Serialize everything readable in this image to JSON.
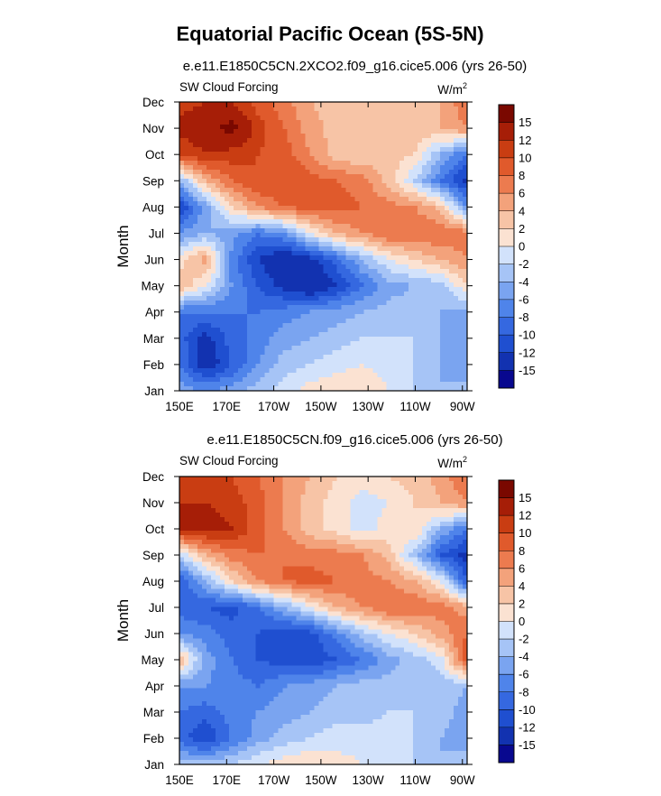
{
  "figure": {
    "title": "Equatorial Pacific Ocean (5S-5N)"
  },
  "chart_data": [
    {
      "type": "heatmap",
      "title": "e.e11.E1850C5CN.2XCO2.f09_g16.cice5.006 (yrs 26-50)",
      "left_label": "SW Cloud Forcing",
      "units_base": "W/m",
      "units_exp": "2",
      "ylabel": "Month",
      "xlabel": "",
      "x_ticks": [
        "150E",
        "170E",
        "170W",
        "150W",
        "130W",
        "110W",
        "90W"
      ],
      "x_values": [
        150,
        170,
        190,
        210,
        230,
        250,
        270
      ],
      "xlim": [
        150,
        272
      ],
      "y_ticks": [
        "Jan",
        "Feb",
        "Mar",
        "Apr",
        "May",
        "Jun",
        "Jul",
        "Aug",
        "Sep",
        "Oct",
        "Nov",
        "Dec"
      ],
      "ylim": [
        1,
        12
      ],
      "colorbar_labels": [
        "-15",
        "-12",
        "-10",
        "-8",
        "-6",
        "-4",
        "-2",
        "0",
        "2",
        "4",
        "6",
        "8",
        "10",
        "12",
        "15"
      ],
      "contour_levels": [
        -15,
        -12,
        -10,
        -8,
        -6,
        -4,
        -2,
        0,
        2,
        4,
        6,
        8,
        10,
        12,
        15
      ],
      "colors": [
        "#08088f",
        "#1232b0",
        "#1f4fd0",
        "#3568e0",
        "#4f84ea",
        "#7aa4f0",
        "#a6c4f6",
        "#d2e2fb",
        "#fbe2d2",
        "#f7c4a6",
        "#f3a27b",
        "#ec7b4f",
        "#e05a2c",
        "#c93d12",
        "#a61e07",
        "#7a0800"
      ],
      "values_approx": {
        "rows_month_jan_to_dec": [
          [
            -5,
            -6,
            -5,
            -3,
            -1,
            1,
            2,
            2,
            0,
            -2,
            -4,
            -3
          ],
          [
            -8,
            -14,
            -10,
            -6,
            -3,
            -2,
            -1,
            0,
            -1,
            -2,
            -4,
            -6
          ],
          [
            -9,
            -13,
            -9,
            -7,
            -5,
            -4,
            -3,
            -2,
            -2,
            -2,
            -4,
            -6
          ],
          [
            -8,
            -8,
            -8,
            -8,
            -7,
            -6,
            -5,
            -4,
            -3,
            -3,
            -4,
            -5
          ],
          [
            4,
            0,
            -6,
            -10,
            -13,
            -15,
            -12,
            -8,
            -5,
            -4,
            -3,
            2
          ],
          [
            1,
            5,
            -7,
            -12,
            -15,
            -13,
            -9,
            -4,
            0,
            2,
            4,
            6
          ],
          [
            -6,
            -4,
            -5,
            -8,
            -6,
            0,
            4,
            6,
            8,
            8,
            8,
            7
          ],
          [
            -12,
            -5,
            2,
            6,
            8,
            9,
            9,
            8,
            7,
            6,
            3,
            -6
          ],
          [
            -4,
            4,
            8,
            10,
            10,
            9,
            8,
            7,
            3,
            -2,
            -8,
            -13
          ],
          [
            10,
            12,
            11,
            10,
            9,
            6,
            3,
            2,
            3,
            2,
            -4,
            -8
          ],
          [
            13,
            14,
            16,
            11,
            8,
            5,
            3,
            2,
            2,
            3,
            4,
            6
          ],
          [
            11,
            12,
            12,
            9,
            7,
            4,
            3,
            2,
            2,
            2,
            4,
            8
          ]
        ]
      }
    },
    {
      "type": "heatmap",
      "title": "e.e11.E1850C5CN.f09_g16.cice5.006 (yrs 26-50)",
      "left_label": "SW Cloud Forcing",
      "units_base": "W/m",
      "units_exp": "2",
      "ylabel": "Month",
      "xlabel": "",
      "x_ticks": [
        "150E",
        "170E",
        "170W",
        "150W",
        "130W",
        "110W",
        "90W"
      ],
      "x_values": [
        150,
        170,
        190,
        210,
        230,
        250,
        270
      ],
      "xlim": [
        150,
        272
      ],
      "y_ticks": [
        "Jan",
        "Feb",
        "Mar",
        "Apr",
        "May",
        "Jun",
        "Jul",
        "Aug",
        "Sep",
        "Oct",
        "Nov",
        "Dec"
      ],
      "ylim": [
        1,
        12
      ],
      "colorbar_labels": [
        "-15",
        "-12",
        "-10",
        "-8",
        "-6",
        "-4",
        "-2",
        "0",
        "2",
        "4",
        "6",
        "8",
        "10",
        "12",
        "15"
      ],
      "contour_levels": [
        -15,
        -12,
        -10,
        -8,
        -6,
        -4,
        -2,
        0,
        2,
        4,
        6,
        8,
        10,
        12,
        15
      ],
      "colors": [
        "#08088f",
        "#1232b0",
        "#1f4fd0",
        "#3568e0",
        "#4f84ea",
        "#7aa4f0",
        "#a6c4f6",
        "#d2e2fb",
        "#fbe2d2",
        "#f7c4a6",
        "#f3a27b",
        "#ec7b4f",
        "#e05a2c",
        "#c93d12",
        "#a61e07",
        "#7a0800"
      ],
      "values_approx": {
        "rows_month_jan_to_dec": [
          [
            -3,
            -3,
            -2,
            0,
            1,
            2,
            1,
            0,
            0,
            -2,
            -4,
            -3
          ],
          [
            -9,
            -12,
            -8,
            -5,
            -3,
            -2,
            -1,
            -1,
            -1,
            -2,
            -4,
            -5
          ],
          [
            -8,
            -9,
            -7,
            -6,
            -5,
            -4,
            -3,
            -3,
            -2,
            -2,
            -3,
            -5
          ],
          [
            -6,
            -6,
            -7,
            -8,
            -6,
            -5,
            -4,
            -3,
            -3,
            -3,
            -3,
            -4
          ],
          [
            4,
            -5,
            -8,
            -10,
            -11,
            -12,
            -10,
            -8,
            -5,
            -3,
            -1,
            10
          ],
          [
            -6,
            -7,
            -9,
            -10,
            -12,
            -11,
            -7,
            -3,
            0,
            2,
            5,
            8
          ],
          [
            -9,
            -10,
            -11,
            -8,
            -4,
            0,
            4,
            6,
            8,
            8,
            7,
            5
          ],
          [
            -10,
            -4,
            2,
            6,
            8,
            9,
            8,
            7,
            6,
            4,
            0,
            -10
          ],
          [
            -2,
            4,
            7,
            8,
            8,
            7,
            7,
            6,
            3,
            -3,
            -10,
            -13
          ],
          [
            12,
            13,
            12,
            9,
            6,
            3,
            1,
            -1,
            1,
            2,
            -4,
            -8
          ],
          [
            12,
            12,
            11,
            9,
            6,
            3,
            1,
            -1,
            0,
            2,
            4,
            6
          ],
          [
            10,
            10,
            10,
            8,
            6,
            4,
            2,
            1,
            2,
            3,
            5,
            8
          ]
        ]
      }
    }
  ]
}
